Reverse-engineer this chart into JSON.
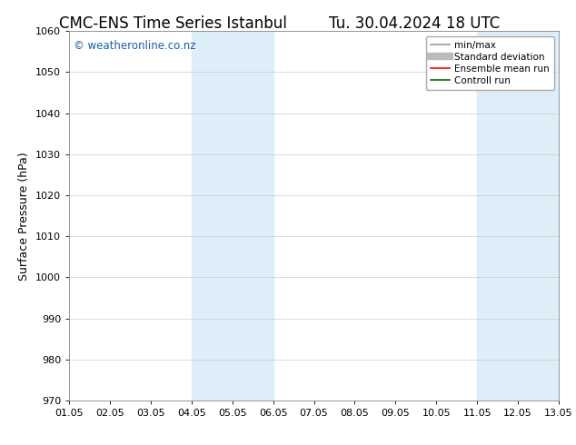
{
  "title_left": "CMC-ENS Time Series Istanbul",
  "title_right": "Tu. 30.04.2024 18 UTC",
  "ylabel": "Surface Pressure (hPa)",
  "ylim": [
    970,
    1060
  ],
  "yticks": [
    970,
    980,
    990,
    1000,
    1010,
    1020,
    1030,
    1040,
    1050,
    1060
  ],
  "xlim": [
    0,
    12
  ],
  "xtick_labels": [
    "01.05",
    "02.05",
    "03.05",
    "04.05",
    "05.05",
    "06.05",
    "07.05",
    "08.05",
    "09.05",
    "10.05",
    "11.05",
    "12.05",
    "13.05"
  ],
  "xtick_positions": [
    0,
    1,
    2,
    3,
    4,
    5,
    6,
    7,
    8,
    9,
    10,
    11,
    12
  ],
  "shaded_regions": [
    {
      "x_start": 3,
      "x_end": 5,
      "color": "#ddeef9"
    },
    {
      "x_start": 10,
      "x_end": 12,
      "color": "#ddeef9"
    }
  ],
  "watermark_text": "© weatheronline.co.nz",
  "watermark_color": "#1a5fa8",
  "watermark_fontsize": 8.5,
  "background_color": "#ffffff",
  "legend_items": [
    {
      "label": "min/max",
      "color": "#999999",
      "linewidth": 1.2
    },
    {
      "label": "Standard deviation",
      "color": "#bbbbbb",
      "linewidth": 6
    },
    {
      "label": "Ensemble mean run",
      "color": "#ff0000",
      "linewidth": 1.2
    },
    {
      "label": "Controll run",
      "color": "#007000",
      "linewidth": 1.2
    }
  ],
  "grid_color": "#bbbbbb",
  "grid_alpha": 0.6,
  "title_fontsize": 12,
  "axis_label_fontsize": 9,
  "tick_fontsize": 8,
  "legend_fontsize": 7.5
}
